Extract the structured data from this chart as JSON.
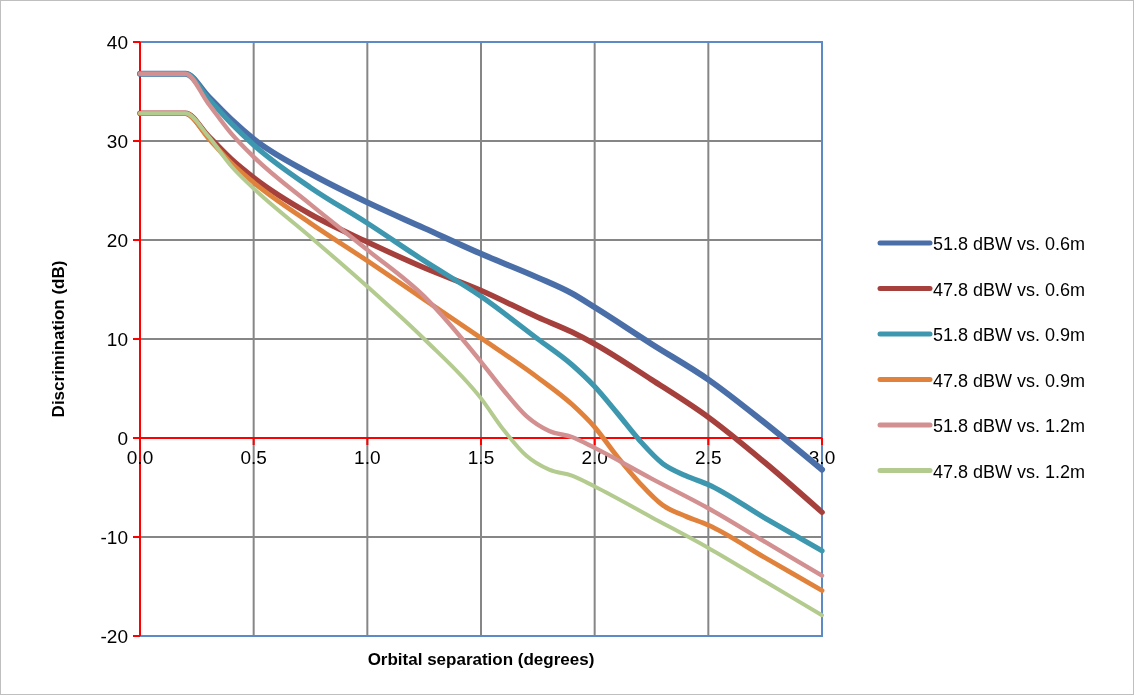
{
  "chart_data": {
    "type": "line",
    "xlabel": "Orbital separation (degrees)",
    "ylabel": "Discrimination (dB)",
    "xlim": [
      0,
      3
    ],
    "xticks": [
      {
        "value": 0,
        "label": "0.0"
      },
      {
        "value": 0.5,
        "label": "0.5"
      },
      {
        "value": 1,
        "label": "1.0"
      },
      {
        "value": 1.5,
        "label": "1.5"
      },
      {
        "value": 2,
        "label": "2.0"
      },
      {
        "value": 2.5,
        "label": "2.5"
      },
      {
        "value": 3,
        "label": "3.0"
      }
    ],
    "ylim": [
      -20,
      40
    ],
    "yticks": [
      -20,
      -10,
      0,
      10,
      20,
      30,
      40
    ],
    "grid": true,
    "legend": "right",
    "line_style": "solid",
    "marker": "none",
    "series": [
      {
        "name": "51.8 dBW vs. 0.6m",
        "color": "#4a6fa8",
        "x": [
          0,
          0.2,
          0.3,
          0.4,
          0.5,
          0.75,
          1,
          1.25,
          1.5,
          1.75,
          1.9,
          2,
          2.25,
          2.5,
          2.75,
          3
        ],
        "values": [
          36.8,
          36.8,
          34.5,
          32.2,
          30.2,
          26.7,
          23.8,
          21.2,
          18.6,
          16.2,
          14.6,
          13.2,
          9.5,
          5.9,
          1.5,
          -3.2
        ]
      },
      {
        "name": "47.8 dBW vs. 0.6m",
        "color": "#a5403c",
        "x": [
          0,
          0.2,
          0.3,
          0.4,
          0.5,
          0.75,
          1,
          1.25,
          1.5,
          1.75,
          1.9,
          2,
          2.25,
          2.5,
          2.75,
          3
        ],
        "values": [
          32.8,
          32.8,
          30.5,
          28.2,
          26.3,
          22.6,
          19.8,
          17.2,
          14.9,
          12.2,
          10.7,
          9.5,
          5.9,
          2.1,
          -2.5,
          -7.5
        ]
      },
      {
        "name": "51.8 dBW vs. 0.9m",
        "color": "#3d97ae",
        "x": [
          0,
          0.2,
          0.3,
          0.4,
          0.5,
          0.75,
          1,
          1.25,
          1.5,
          1.75,
          1.9,
          2,
          2.1,
          2.2,
          2.3,
          2.4,
          2.5,
          2.75,
          3
        ],
        "values": [
          36.8,
          36.8,
          34.3,
          31.8,
          29.6,
          25.3,
          21.7,
          17.9,
          14.3,
          10,
          7.4,
          5.2,
          2.5,
          -0.3,
          -2.6,
          -3.8,
          -4.7,
          -8.1,
          -11.4
        ]
      },
      {
        "name": "47.8 dBW vs. 0.9m",
        "color": "#e0823b",
        "x": [
          0,
          0.2,
          0.3,
          0.4,
          0.5,
          0.75,
          1,
          1.25,
          1.5,
          1.75,
          1.9,
          2,
          2.1,
          2.2,
          2.3,
          2.4,
          2.5,
          2.75,
          3
        ],
        "values": [
          32.8,
          32.8,
          30.3,
          27.8,
          25.8,
          21.7,
          17.9,
          14,
          10.1,
          6.1,
          3.4,
          1.1,
          -1.9,
          -4.6,
          -6.8,
          -7.9,
          -8.8,
          -12.1,
          -15.4
        ]
      },
      {
        "name": "51.8 dBW vs. 1.2m",
        "color": "#d39090",
        "x": [
          0,
          0.2,
          0.3,
          0.4,
          0.5,
          0.75,
          1,
          1.25,
          1.5,
          1.6,
          1.7,
          1.8,
          1.9,
          2,
          2.25,
          2.5,
          2.75,
          3
        ],
        "values": [
          36.8,
          36.8,
          33.8,
          30.8,
          28.4,
          23.6,
          19,
          14.3,
          7.7,
          4.8,
          2.2,
          0.7,
          0.1,
          -1,
          -4.1,
          -7.1,
          -10.5,
          -13.9
        ]
      },
      {
        "name": "47.8 dBW vs. 1.2m",
        "color": "#b3cb8e",
        "x": [
          0,
          0.2,
          0.3,
          0.4,
          0.5,
          0.75,
          1,
          1.25,
          1.5,
          1.6,
          1.7,
          1.8,
          1.9,
          2,
          2.25,
          2.5,
          2.75,
          3
        ],
        "values": [
          32.8,
          32.8,
          30.5,
          27.5,
          25.2,
          20.3,
          15.3,
          10,
          4,
          0.8,
          -1.8,
          -3.2,
          -3.8,
          -4.9,
          -8,
          -11.1,
          -14.5,
          -17.9
        ]
      }
    ]
  }
}
